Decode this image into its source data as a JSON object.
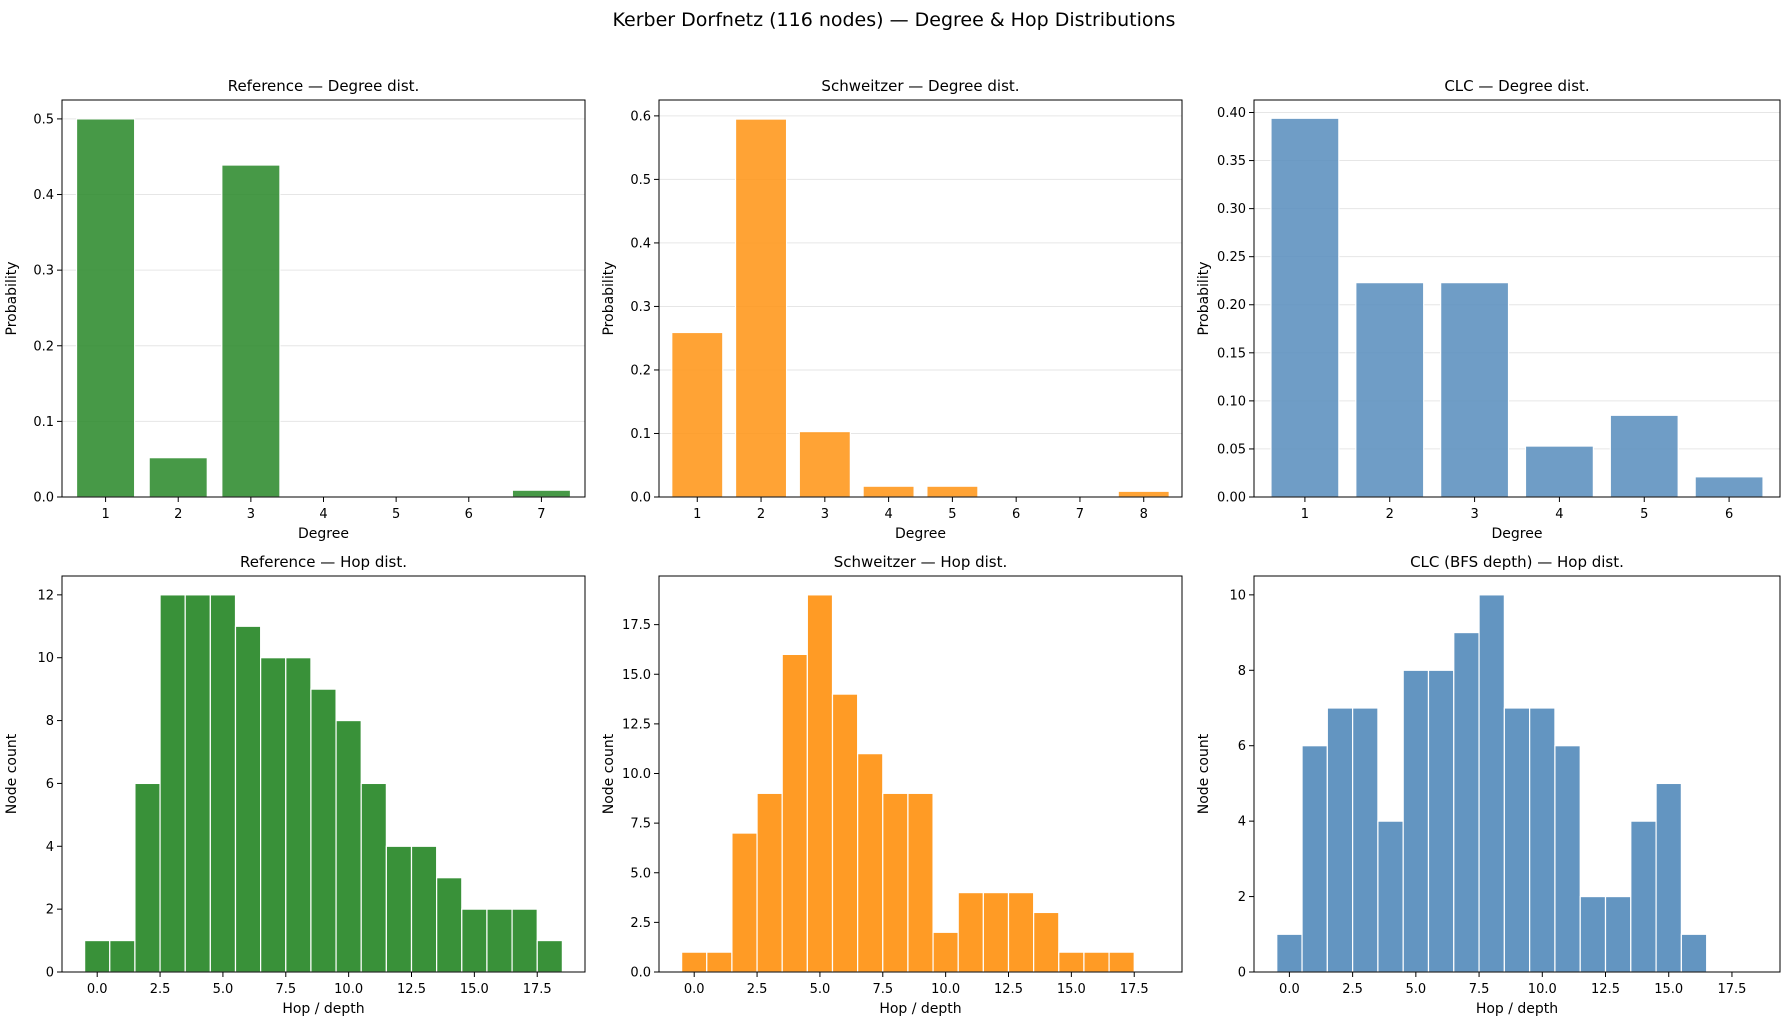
{
  "figure": {
    "title": "Kerber Dorfnetz (116 nodes) — Degree & Hop Distributions"
  },
  "colors": {
    "reference": "#2e8b2e",
    "schweitzer": "#ff9619",
    "clc": "#5b8fbe"
  },
  "chart_data": [
    {
      "type": "bar",
      "title": "Reference — Degree dist.",
      "xlabel": "Degree",
      "ylabel": "Probability",
      "color": "reference",
      "categories": [
        1,
        2,
        3,
        4,
        5,
        6,
        7
      ],
      "values": [
        0.5,
        0.052,
        0.439,
        0,
        0,
        0,
        0.009
      ],
      "xlim": [
        0.4,
        7.6
      ],
      "ylim": [
        0,
        0.525
      ],
      "xticks": [
        1,
        2,
        3,
        4,
        5,
        6,
        7
      ],
      "yticks": [
        0,
        0.1,
        0.2,
        0.3,
        0.4,
        0.5
      ],
      "grid": "y"
    },
    {
      "type": "bar",
      "title": "Schweitzer — Degree dist.",
      "xlabel": "Degree",
      "ylabel": "Probability",
      "color": "schweitzer",
      "categories": [
        1,
        2,
        3,
        4,
        5,
        6,
        7,
        8
      ],
      "values": [
        0.259,
        0.595,
        0.103,
        0.017,
        0.017,
        0,
        0,
        0.009
      ],
      "xlim": [
        0.4,
        8.6
      ],
      "ylim": [
        0,
        0.625
      ],
      "xticks": [
        1,
        2,
        3,
        4,
        5,
        6,
        7,
        8
      ],
      "yticks": [
        0,
        0.1,
        0.2,
        0.3,
        0.4,
        0.5,
        0.6
      ],
      "grid": "y"
    },
    {
      "type": "bar",
      "title": "CLC — Degree dist.",
      "xlabel": "Degree",
      "ylabel": "Probability",
      "color": "clc",
      "categories": [
        1,
        2,
        3,
        4,
        5,
        6
      ],
      "values": [
        0.394,
        0.223,
        0.223,
        0.053,
        0.085,
        0.021
      ],
      "xlim": [
        0.4,
        6.6
      ],
      "ylim": [
        0,
        0.413
      ],
      "xticks": [
        1,
        2,
        3,
        4,
        5,
        6
      ],
      "yticks": [
        0,
        0.05,
        0.1,
        0.15,
        0.2,
        0.25,
        0.3,
        0.35,
        0.4
      ],
      "grid": "y"
    },
    {
      "type": "bar",
      "title": "Reference — Hop dist.",
      "xlabel": "Hop / depth",
      "ylabel": "Node count",
      "color": "reference",
      "x": [
        0,
        1,
        2,
        3,
        4,
        5,
        6,
        7,
        8,
        9,
        10,
        11,
        12,
        13,
        14,
        15,
        16,
        17,
        18
      ],
      "values": [
        1,
        1,
        6,
        12,
        12,
        12,
        11,
        10,
        10,
        9,
        8,
        6,
        4,
        4,
        3,
        2,
        2,
        2,
        1
      ],
      "xlim": [
        -1.4,
        19.4
      ],
      "ylim": [
        0,
        12.6
      ],
      "xticks": [
        0,
        2.5,
        5,
        7.5,
        10,
        12.5,
        15,
        17.5
      ],
      "yticks": [
        0,
        2,
        4,
        6,
        8,
        10,
        12
      ],
      "grid": "none"
    },
    {
      "type": "bar",
      "title": "Schweitzer — Hop dist.",
      "xlabel": "Hop / depth",
      "ylabel": "Node count",
      "color": "schweitzer",
      "x": [
        0,
        1,
        2,
        3,
        4,
        5,
        6,
        7,
        8,
        9,
        10,
        11,
        12,
        13,
        14,
        15,
        16,
        17
      ],
      "values": [
        1,
        1,
        7,
        9,
        16,
        19,
        14,
        11,
        9,
        9,
        2,
        4,
        4,
        4,
        3,
        1,
        1,
        1
      ],
      "xlim": [
        -1.4,
        19.4
      ],
      "ylim": [
        0,
        19.95
      ],
      "xticks": [
        0,
        2.5,
        5,
        7.5,
        10,
        12.5,
        15,
        17.5
      ],
      "yticks": [
        0,
        2.5,
        5,
        7.5,
        10,
        12.5,
        15,
        17.5
      ],
      "grid": "none"
    },
    {
      "type": "bar",
      "title": "CLC (BFS depth) — Hop dist.",
      "xlabel": "Hop / depth",
      "ylabel": "Node count",
      "color": "clc",
      "x": [
        0,
        1,
        2,
        3,
        4,
        5,
        6,
        7,
        8,
        9,
        10,
        11,
        12,
        13,
        14,
        15,
        16
      ],
      "values": [
        1,
        6,
        7,
        7,
        4,
        8,
        8,
        9,
        10,
        7,
        7,
        6,
        2,
        2,
        4,
        5,
        1
      ],
      "xlim": [
        -1.4,
        19.4
      ],
      "ylim": [
        0,
        10.5
      ],
      "xticks": [
        0,
        2.5,
        5,
        7.5,
        10,
        12.5,
        15,
        17.5
      ],
      "yticks": [
        0,
        2,
        4,
        6,
        8,
        10
      ],
      "grid": "none"
    }
  ]
}
